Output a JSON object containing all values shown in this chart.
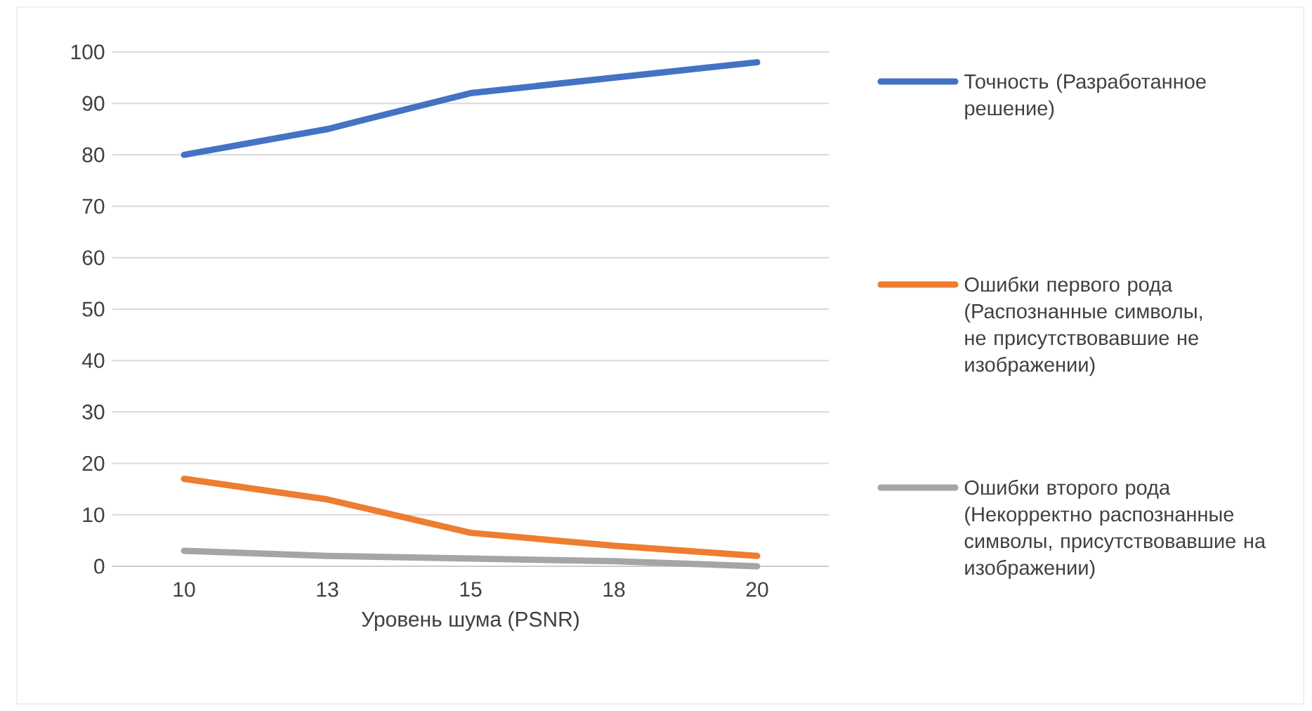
{
  "chart_data": {
    "type": "line",
    "xlabel": "Уровень шума (PSNR)",
    "categories": [
      "10",
      "13",
      "15",
      "18",
      "20"
    ],
    "ylim": [
      0,
      100
    ],
    "yticks": [
      0,
      10,
      20,
      30,
      40,
      50,
      60,
      70,
      80,
      90,
      100
    ],
    "grid": "y",
    "legend": "right",
    "marker": "none",
    "line_style": "solid",
    "series": [
      {
        "name": "Точность (Разработанное решение)",
        "color": "#4472c4",
        "values": [
          80,
          85,
          92,
          95,
          98
        ]
      },
      {
        "name": "Ошибки первого рода (Распознанные символы, не присутствовавшие не изображении)",
        "color": "#ed7d31",
        "values": [
          17,
          13,
          6.5,
          4,
          2
        ]
      },
      {
        "name": "Ошибки второго рода (Некорректно распознанные символы, присутствовавшие на изображении)",
        "color": "#a5a5a5",
        "values": [
          3,
          2,
          1.5,
          1,
          0
        ]
      }
    ]
  }
}
